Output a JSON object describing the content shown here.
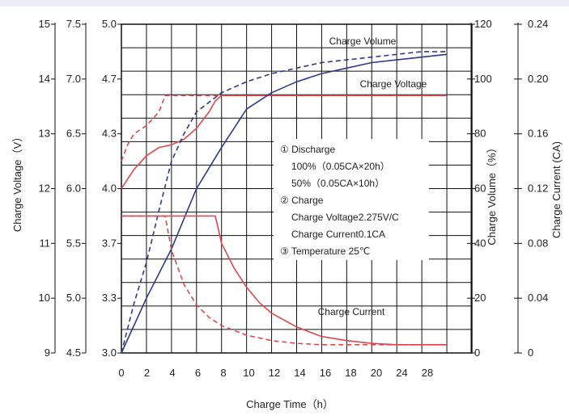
{
  "chart_data": {
    "type": "line",
    "title": "",
    "xlabel": "Charge Time（h）",
    "xlim": [
      0,
      28
    ],
    "x_ticks": [
      "0",
      "2",
      "4",
      "6",
      "8",
      "10",
      "12",
      "14",
      "16",
      "18",
      "20",
      "24",
      "28"
    ],
    "grid": true,
    "left_axes": [
      {
        "label": "Charge Voltage（V）",
        "ticks": [
          "15",
          "14",
          "13",
          "12",
          "11",
          "10",
          "9"
        ],
        "range": [
          9,
          15
        ]
      },
      {
        "label": "",
        "ticks": [
          "7.5",
          "7.0",
          "6.5",
          "6.0",
          "5.5",
          "5.0",
          "4.5"
        ],
        "range": [
          4.5,
          7.5
        ]
      },
      {
        "label": "",
        "ticks": [
          "5.0",
          "4.7",
          "4.3",
          "4.0",
          "3.7",
          "3.3",
          "3.0"
        ],
        "range": [
          3.0,
          5.0
        ]
      }
    ],
    "right_axes": [
      {
        "label": "Charge Volume（%）",
        "ticks": [
          "120",
          "100",
          "80",
          "60",
          "40",
          "20",
          "0"
        ],
        "range": [
          0,
          120
        ]
      },
      {
        "label": "Charge Current (CA)",
        "ticks": [
          "0.24",
          "0.20",
          "0.16",
          "0.12",
          "0.08",
          "0.04",
          "0"
        ],
        "range": [
          0,
          0.24
        ]
      }
    ],
    "curve_labels": [
      "Charge Volume",
      "Charge Voltage",
      "Charge Current"
    ],
    "annotations": [
      "① Discharge",
      "100%（0.05CA×20h）",
      "50%（0.05CA×10h）",
      "② Charge",
      "Charge Voltage2.275V/C",
      "Charge Current0.1CA",
      "③ Temperature 25℃"
    ],
    "series": [
      {
        "quantity": "Charge Voltage",
        "discharge": "100%",
        "axis": "Charge Voltage（V）",
        "style": "solid",
        "color": "#e0474c",
        "x": [
          0,
          1,
          2,
          3,
          4,
          5,
          6,
          7,
          7.5,
          8,
          10,
          12,
          14,
          16,
          18,
          20,
          22,
          24,
          26
        ],
        "y": [
          12.0,
          12.35,
          12.6,
          12.75,
          12.8,
          12.9,
          13.1,
          13.4,
          13.6,
          13.7,
          13.7,
          13.7,
          13.7,
          13.7,
          13.7,
          13.7,
          13.7,
          13.7,
          13.7
        ]
      },
      {
        "quantity": "Charge Voltage",
        "discharge": "50%",
        "axis": "Charge Voltage（V）",
        "style": "dashed",
        "color": "#e0474c",
        "x": [
          0,
          0.5,
          1,
          2,
          3,
          3.5,
          4,
          6,
          8,
          10,
          14,
          18,
          22,
          26
        ],
        "y": [
          12.5,
          12.8,
          13.0,
          13.15,
          13.4,
          13.7,
          13.7,
          13.7,
          13.7,
          13.7,
          13.7,
          13.7,
          13.7,
          13.7
        ]
      },
      {
        "quantity": "Charge Volume",
        "discharge": "100%",
        "axis": "Charge Volume（%）",
        "style": "solid",
        "color": "#2c3a8c",
        "x": [
          0,
          2,
          4,
          6,
          8,
          10,
          12,
          14,
          16,
          18,
          20,
          22,
          24,
          26
        ],
        "y": [
          0,
          20,
          38,
          60,
          75,
          89,
          95,
          99,
          102,
          104,
          106,
          107,
          108,
          109
        ]
      },
      {
        "quantity": "Charge Volume",
        "discharge": "50%",
        "axis": "Charge Volume（%）",
        "style": "dashed",
        "color": "#2c3a8c",
        "x": [
          0,
          1,
          2,
          3,
          4,
          5,
          6,
          8,
          10,
          12,
          14,
          16,
          18,
          20,
          22,
          24,
          26
        ],
        "y": [
          0,
          18,
          33,
          52,
          70,
          80,
          88,
          95,
          99,
          102,
          104,
          106,
          107,
          108,
          109,
          110,
          110
        ]
      },
      {
        "quantity": "Charge Current",
        "discharge": "100%",
        "axis": "Charge Current (CA)",
        "style": "solid",
        "color": "#e0474c",
        "x": [
          0,
          7.5,
          8,
          9,
          10,
          11,
          12,
          14,
          16,
          18,
          20,
          22,
          24,
          26
        ],
        "y": [
          0.1,
          0.1,
          0.08,
          0.062,
          0.048,
          0.037,
          0.029,
          0.019,
          0.012,
          0.009,
          0.007,
          0.006,
          0.006,
          0.006
        ]
      },
      {
        "quantity": "Charge Current",
        "discharge": "50%",
        "axis": "Charge Current (CA)",
        "style": "dashed",
        "color": "#e0474c",
        "x": [
          0,
          3.5,
          4,
          5,
          6,
          7,
          8,
          10,
          12,
          14,
          16,
          18,
          20,
          22,
          26
        ],
        "y": [
          0.1,
          0.1,
          0.075,
          0.05,
          0.035,
          0.026,
          0.02,
          0.013,
          0.009,
          0.007,
          0.006,
          0.006,
          0.006,
          0.006,
          0.006
        ]
      }
    ]
  }
}
